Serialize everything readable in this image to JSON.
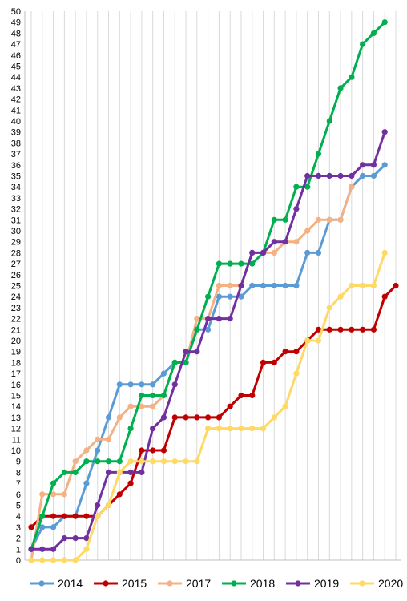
{
  "chart_data": {
    "type": "line",
    "title": "",
    "xlabel": "",
    "ylabel": "",
    "ylim": [
      0,
      50
    ],
    "yticks": [
      "0",
      "1",
      "2",
      "3",
      "4",
      "5",
      "6",
      "7",
      "8",
      "9",
      "10",
      "11",
      "12",
      "13",
      "14",
      "15",
      "16",
      "17",
      "18",
      "19",
      "20",
      "21",
      "22",
      "23",
      "24",
      "25",
      "26",
      "27",
      "28",
      "29",
      "30",
      "31",
      "32",
      "33",
      "34",
      "35",
      "36",
      "37",
      "38",
      "39",
      "40",
      "41",
      "42",
      "43",
      "44",
      "45",
      "46",
      "47",
      "48",
      "49",
      "50"
    ],
    "x_count": 34,
    "grid": "vertical",
    "legend": "bottom",
    "series": [
      {
        "name": "2014",
        "color": "#5b9bd5",
        "values": [
          1,
          3,
          3,
          4,
          4,
          7,
          10,
          13,
          16,
          16,
          16,
          16,
          17,
          18,
          18,
          21,
          21,
          24,
          24,
          24,
          25,
          25,
          25,
          25,
          25,
          28,
          28,
          31,
          31,
          34,
          35,
          35,
          36
        ]
      },
      {
        "name": "2015",
        "color": "#c00000",
        "values": [
          3,
          4,
          4,
          4,
          4,
          4,
          4,
          5,
          6,
          7,
          10,
          10,
          10,
          13,
          13,
          13,
          13,
          13,
          14,
          15,
          15,
          18,
          18,
          19,
          19,
          20,
          21,
          21,
          21,
          21,
          21,
          21,
          24,
          25
        ]
      },
      {
        "name": "2017",
        "color": "#f4b183",
        "values": [
          0,
          6,
          6,
          6,
          9,
          10,
          11,
          11,
          13,
          14,
          14,
          14,
          15,
          18,
          18,
          22,
          22,
          25,
          25,
          25,
          28,
          28,
          28,
          29,
          29,
          30,
          31,
          31,
          31,
          34
        ]
      },
      {
        "name": "2018",
        "color": "#00b050",
        "values": [
          1,
          4,
          7,
          8,
          8,
          9,
          9,
          9,
          9,
          12,
          15,
          15,
          15,
          18,
          18,
          21,
          24,
          27,
          27,
          27,
          27,
          28,
          31,
          31,
          34,
          34,
          37,
          40,
          43,
          44,
          47,
          48,
          49
        ]
      },
      {
        "name": "2019",
        "color": "#7030a0",
        "values": [
          1,
          1,
          1,
          2,
          2,
          2,
          5,
          8,
          8,
          8,
          8,
          12,
          13,
          16,
          19,
          19,
          22,
          22,
          22,
          25,
          28,
          28,
          29,
          29,
          32,
          35,
          35,
          35,
          35,
          35,
          36,
          36,
          39
        ]
      },
      {
        "name": "2020",
        "color": "#ffd966",
        "values": [
          0,
          0,
          0,
          0,
          0,
          1,
          4,
          5,
          8,
          9,
          9,
          9,
          9,
          9,
          9,
          9,
          12,
          12,
          12,
          12,
          12,
          12,
          13,
          14,
          17,
          20,
          20,
          23,
          24,
          25,
          25,
          25,
          28
        ]
      }
    ]
  }
}
